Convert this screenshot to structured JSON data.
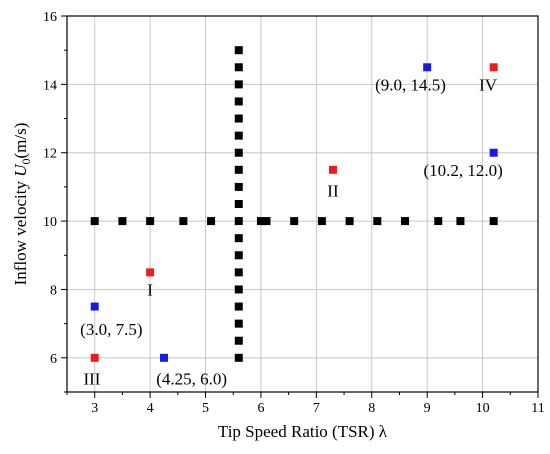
{
  "chart_data": {
    "type": "scatter",
    "title": "",
    "xlabel": "Tip Speed Ratio (TSR) λ",
    "ylabel": "Inflow velocity U0(m/s)",
    "ylabel_parts": {
      "prefix": "Inflow velocity ",
      "symbol": "U",
      "subscript": "0",
      "suffix": "(m/s)"
    },
    "xlim": [
      2.5,
      11
    ],
    "ylim": [
      5,
      16
    ],
    "xticks": [
      3,
      4,
      5,
      6,
      7,
      8,
      9,
      10,
      11
    ],
    "yticks": [
      6,
      8,
      10,
      12,
      14,
      16
    ],
    "grid": true,
    "colors": {
      "black": "#000000",
      "red": "#ee1c1c",
      "blue": "#1a1ae6",
      "grid": "#c8c8c8"
    },
    "series": [
      {
        "color": "black",
        "points": [
          [
            3.0,
            10.0
          ],
          [
            3.5,
            10.0
          ],
          [
            4.0,
            10.0
          ],
          [
            4.6,
            10.0
          ],
          [
            5.1,
            10.0
          ],
          [
            6.0,
            10.0
          ],
          [
            6.1,
            10.0
          ],
          [
            6.6,
            10.0
          ],
          [
            7.1,
            10.0
          ],
          [
            7.6,
            10.0
          ],
          [
            8.1,
            10.0
          ],
          [
            8.6,
            10.0
          ],
          [
            9.2,
            10.0
          ],
          [
            9.6,
            10.0
          ],
          [
            10.2,
            10.0
          ],
          [
            5.6,
            6.0
          ],
          [
            5.6,
            6.5
          ],
          [
            5.6,
            7.0
          ],
          [
            5.6,
            7.5
          ],
          [
            5.6,
            8.0
          ],
          [
            5.6,
            8.5
          ],
          [
            5.6,
            9.0
          ],
          [
            5.6,
            9.5
          ],
          [
            5.6,
            10.0
          ],
          [
            5.6,
            10.5
          ],
          [
            5.6,
            11.0
          ],
          [
            5.6,
            11.5
          ],
          [
            5.6,
            12.0
          ],
          [
            5.6,
            12.5
          ],
          [
            5.6,
            13.0
          ],
          [
            5.6,
            13.5
          ],
          [
            5.6,
            14.0
          ],
          [
            5.6,
            14.5
          ],
          [
            5.6,
            15.0
          ]
        ]
      },
      {
        "color": "red",
        "points": [
          [
            4.0,
            8.5
          ],
          [
            7.3,
            11.5
          ],
          [
            3.0,
            6.0
          ],
          [
            10.2,
            14.5
          ]
        ]
      },
      {
        "color": "blue",
        "points": [
          [
            3.0,
            7.5
          ],
          [
            4.25,
            6.0
          ],
          [
            9.0,
            14.5
          ],
          [
            10.2,
            12.0
          ]
        ]
      }
    ],
    "annotations": [
      {
        "text": "I",
        "x": 4.0,
        "y": 8.0
      },
      {
        "text": "II",
        "x": 7.3,
        "y": 10.9
      },
      {
        "text": "III",
        "x": 2.95,
        "y": 5.4
      },
      {
        "text": "IV",
        "x": 10.1,
        "y": 14.0
      },
      {
        "text": "(3.0, 7.5)",
        "x": 3.3,
        "y": 6.85
      },
      {
        "text": "(4.25, 6.0)",
        "x": 4.75,
        "y": 5.4
      },
      {
        "text": "(9.0, 14.5)",
        "x": 8.7,
        "y": 14.0
      },
      {
        "text": "(10.2, 12.0)",
        "x": 9.65,
        "y": 11.5
      }
    ]
  }
}
